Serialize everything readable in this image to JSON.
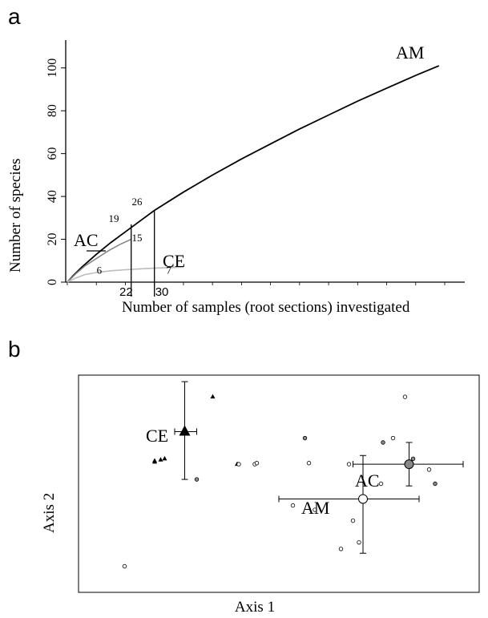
{
  "chart_data": [
    {
      "panel": "a",
      "type": "line",
      "xlabel": "Number of samples (root sections) investigated",
      "ylabel": "Number of species",
      "yticks": [
        0,
        20,
        40,
        60,
        80,
        100
      ],
      "xtick_labels": [
        "22",
        "30"
      ],
      "ylim": [
        0,
        110
      ],
      "xlim": [
        0,
        130
      ],
      "series": [
        {
          "name": "AM",
          "color": "#000000",
          "x": [
            0,
            2,
            5,
            10,
            15,
            20,
            25,
            30,
            40,
            50,
            60,
            70,
            80,
            90,
            100,
            110,
            120,
            128
          ],
          "y": [
            0,
            3,
            7,
            13,
            18.5,
            23.5,
            28.5,
            33.5,
            42,
            50,
            57.5,
            64.5,
            71.5,
            78,
            84.5,
            90.5,
            96.5,
            101
          ]
        },
        {
          "name": "AC",
          "color": "#888888",
          "x": [
            0,
            3,
            6,
            10,
            14,
            18,
            22
          ],
          "y": [
            0,
            4,
            7.5,
            11,
            14.5,
            17.5,
            20
          ]
        },
        {
          "name": "CE",
          "color": "#bbbbbb",
          "x": [
            0,
            3,
            6,
            10,
            15,
            20,
            25,
            30,
            35,
            40
          ],
          "y": [
            0,
            2,
            3.5,
            4.5,
            5.3,
            5.8,
            6.2,
            6.5,
            6.8,
            7
          ]
        }
      ],
      "annotations": [
        {
          "text": "19",
          "x": 16,
          "y": 28
        },
        {
          "text": "26",
          "x": 24,
          "y": 36
        },
        {
          "text": "15",
          "x": 24,
          "y": 19
        },
        {
          "text": "6",
          "x": 11,
          "y": 4
        },
        {
          "text": "7",
          "x": 35,
          "y": 4
        }
      ]
    },
    {
      "panel": "b",
      "type": "scatter",
      "xlabel": "Axis 1",
      "ylabel": "Axis 2",
      "points": [
        {
          "group": "CE",
          "x": 0.335,
          "y": 0.9
        },
        {
          "group": "CE",
          "x": 0.19,
          "y": 0.6
        },
        {
          "group": "CE",
          "x": 0.205,
          "y": 0.61
        },
        {
          "group": "CE",
          "x": 0.215,
          "y": 0.615
        },
        {
          "group": "CE",
          "x": 0.19,
          "y": 0.605
        },
        {
          "group": "CE",
          "x": 0.396,
          "y": 0.59
        },
        {
          "group": "AC",
          "x": 0.295,
          "y": 0.52
        },
        {
          "group": "AC",
          "x": 0.565,
          "y": 0.71
        },
        {
          "group": "AC",
          "x": 0.76,
          "y": 0.69
        },
        {
          "group": "AC",
          "x": 0.835,
          "y": 0.615
        },
        {
          "group": "AC",
          "x": 0.89,
          "y": 0.5
        },
        {
          "group": "AM",
          "x": 0.815,
          "y": 0.9
        },
        {
          "group": "AM",
          "x": 0.4,
          "y": 0.59
        },
        {
          "group": "AM",
          "x": 0.44,
          "y": 0.59
        },
        {
          "group": "AM",
          "x": 0.445,
          "y": 0.595
        },
        {
          "group": "AM",
          "x": 0.575,
          "y": 0.595
        },
        {
          "group": "AM",
          "x": 0.675,
          "y": 0.59
        },
        {
          "group": "AM",
          "x": 0.785,
          "y": 0.71
        },
        {
          "group": "AM",
          "x": 0.875,
          "y": 0.565
        },
        {
          "group": "AM",
          "x": 0.755,
          "y": 0.5
        },
        {
          "group": "AM",
          "x": 0.535,
          "y": 0.4
        },
        {
          "group": "AM",
          "x": 0.59,
          "y": 0.38
        },
        {
          "group": "AM",
          "x": 0.685,
          "y": 0.33
        },
        {
          "group": "AM",
          "x": 0.7,
          "y": 0.23
        },
        {
          "group": "AM",
          "x": 0.655,
          "y": 0.2
        },
        {
          "group": "AM",
          "x": 0.115,
          "y": 0.12
        }
      ],
      "centroids": [
        {
          "group": "CE",
          "x": 0.265,
          "y": 0.74,
          "xerr": [
            0.24,
            0.295
          ],
          "yerr": [
            0.52,
            0.97
          ],
          "marker": "triangle",
          "color": "#000000"
        },
        {
          "group": "AC",
          "x": 0.825,
          "y": 0.59,
          "xerr": [
            0.685,
            0.96
          ],
          "yerr": [
            0.49,
            0.69
          ],
          "marker": "circle",
          "color": "#888888"
        },
        {
          "group": "AM",
          "x": 0.71,
          "y": 0.43,
          "xerr": [
            0.5,
            0.85
          ],
          "yerr": [
            0.18,
            0.63
          ],
          "marker": "circle",
          "color": "#ffffff"
        }
      ]
    }
  ],
  "panel_letters": {
    "a": "a",
    "b": "b"
  },
  "labels_a": {
    "AM": "AM",
    "AC": "AC",
    "CE": "CE"
  },
  "labels_b": {
    "CE": "CE",
    "AC": "AC",
    "AM": "AM"
  }
}
